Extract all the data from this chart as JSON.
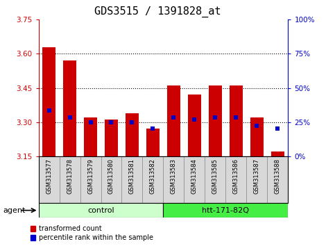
{
  "title": "GDS3515 / 1391828_at",
  "samples": [
    "GSM313577",
    "GSM313578",
    "GSM313579",
    "GSM313580",
    "GSM313581",
    "GSM313582",
    "GSM313583",
    "GSM313584",
    "GSM313585",
    "GSM313586",
    "GSM313587",
    "GSM313588"
  ],
  "red_tops": [
    3.63,
    3.57,
    3.32,
    3.31,
    3.34,
    3.27,
    3.46,
    3.42,
    3.46,
    3.46,
    3.32,
    3.17
  ],
  "blue_vals": [
    3.35,
    3.32,
    3.3,
    3.3,
    3.3,
    3.27,
    3.32,
    3.31,
    3.32,
    3.32,
    3.285,
    3.27
  ],
  "bar_bottom": 3.15,
  "ylim_left": [
    3.15,
    3.75
  ],
  "ylim_right": [
    0,
    100
  ],
  "yticks_left": [
    3.15,
    3.3,
    3.45,
    3.6,
    3.75
  ],
  "yticks_right": [
    0,
    25,
    50,
    75,
    100
  ],
  "dotted_lines": [
    3.3,
    3.45,
    3.6
  ],
  "red_color": "#CC0000",
  "blue_color": "#0000CC",
  "bar_width": 0.65,
  "control_color": "#CCFFCC",
  "treatment_color": "#44EE44",
  "agent_label": "agent",
  "legend_red": "transformed count",
  "legend_blue": "percentile rank within the sample",
  "tick_color_left": "#CC0000",
  "tick_color_right": "#0000CC",
  "title_fontsize": 11,
  "blue_marker_size": 5,
  "sample_bg_color": "#D8D8D8"
}
